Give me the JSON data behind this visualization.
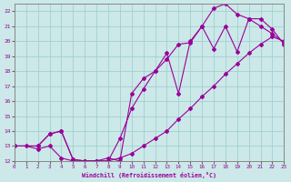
{
  "xlabel": "Windchill (Refroidissement éolien,°C)",
  "xlim": [
    0,
    23
  ],
  "ylim": [
    12,
    22.5
  ],
  "xticks": [
    0,
    1,
    2,
    3,
    4,
    5,
    6,
    7,
    8,
    9,
    10,
    11,
    12,
    13,
    14,
    15,
    16,
    17,
    18,
    19,
    20,
    21,
    22,
    23
  ],
  "yticks": [
    12,
    13,
    14,
    15,
    16,
    17,
    18,
    19,
    20,
    21,
    22
  ],
  "bg_color": "#cce8e8",
  "line_color": "#990099",
  "grid_color": "#99cccc",
  "line1_x": [
    0,
    1,
    2,
    3,
    4,
    5,
    6,
    7,
    8,
    9,
    10,
    11,
    12,
    13,
    14,
    15,
    16,
    17,
    18,
    19,
    20,
    21,
    22,
    23
  ],
  "line1_y": [
    13.0,
    13.0,
    12.8,
    13.0,
    12.2,
    12.0,
    12.0,
    12.0,
    12.0,
    12.2,
    12.5,
    13.0,
    13.5,
    14.0,
    14.8,
    15.5,
    16.3,
    17.0,
    17.8,
    18.5,
    19.2,
    19.8,
    20.3,
    20.0
  ],
  "line2_x": [
    0,
    2,
    3,
    4,
    5,
    6,
    7,
    8,
    9,
    10,
    11,
    12,
    13,
    14,
    15,
    16,
    17,
    18,
    19,
    20,
    21,
    22,
    23
  ],
  "line2_y": [
    13.0,
    13.0,
    13.8,
    14.0,
    12.1,
    12.0,
    12.0,
    12.0,
    13.5,
    15.5,
    16.8,
    18.0,
    18.8,
    19.8,
    19.9,
    21.0,
    22.2,
    22.5,
    21.8,
    21.5,
    21.0,
    20.5,
    19.9
  ],
  "line3_x": [
    0,
    2,
    3,
    4,
    5,
    6,
    7,
    8,
    9,
    10,
    11,
    12,
    13,
    14,
    15,
    16,
    17,
    18,
    19,
    20,
    21,
    22,
    23
  ],
  "line3_y": [
    13.0,
    13.0,
    13.8,
    14.0,
    12.1,
    12.0,
    12.0,
    12.2,
    12.0,
    16.5,
    17.5,
    18.0,
    19.2,
    16.5,
    20.0,
    21.0,
    19.5,
    21.0,
    19.3,
    21.5,
    21.5,
    20.8,
    19.8
  ]
}
